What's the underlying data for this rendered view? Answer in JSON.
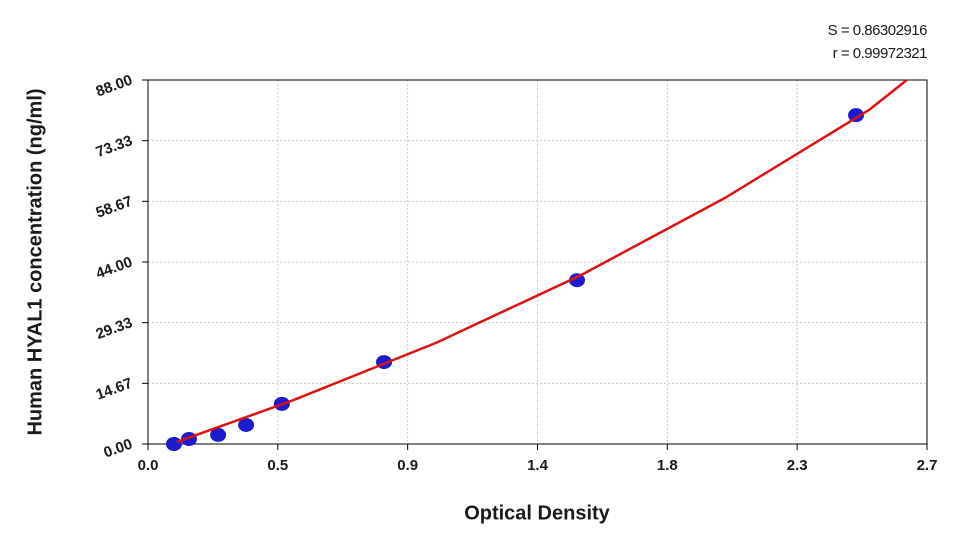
{
  "chart_data": {
    "type": "scatter",
    "x_label": "Optical Density",
    "y_label": "Human  HYAL1 concentration (ng/ml)",
    "annotations": [
      "S = 0.86302916",
      "r = 0.99972321"
    ],
    "xlim": [
      0,
      2.7
    ],
    "ylim": [
      0,
      88
    ],
    "xticks": [
      {
        "value": 0,
        "label": "0.0"
      },
      {
        "value": 0.45,
        "label": "0.5"
      },
      0.9,
      {
        "value": 1.35,
        "label": "1.4"
      },
      1.8,
      {
        "value": 2.25,
        "label": "2.3"
      },
      2.7
    ],
    "yticks": [
      {
        "value": 0,
        "label": "0.00"
      },
      {
        "value": 14.67,
        "label": "14.67"
      },
      {
        "value": 29.33,
        "label": "29.33"
      },
      {
        "value": 44,
        "label": "44.00"
      },
      {
        "value": 58.67,
        "label": "58.67"
      },
      {
        "value": 73.33,
        "label": "73.33"
      },
      {
        "value": 88,
        "label": "88.00"
      }
    ],
    "grid": true,
    "series": [
      {
        "kind": "points",
        "color": "#1c1ccc",
        "x": [
          0.09,
          0.142,
          0.243,
          0.34,
          0.464,
          0.818,
          1.487,
          2.454
        ],
        "values": [
          0,
          1.2,
          2.2,
          4.6,
          9.7,
          19.8,
          39.6,
          79.5
        ]
      },
      {
        "kind": "line",
        "color": "#dd1111",
        "x": [
          0.1,
          0.5,
          1.0,
          1.5,
          2.0,
          2.5,
          2.63
        ],
        "values": [
          0.5,
          10.5,
          24.5,
          40.8,
          59.5,
          80.8,
          88
        ]
      }
    ]
  }
}
